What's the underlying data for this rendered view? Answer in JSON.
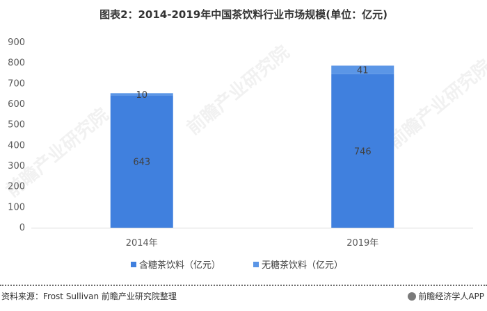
{
  "title": "图表2：2014-2019年中国茶饮料行业市场规模(单位：亿元)",
  "chart_data": {
    "type": "bar",
    "stacked": true,
    "categories": [
      "2014年",
      "2019年"
    ],
    "series": [
      {
        "name": "含糖茶饮料（亿元）",
        "values": [
          643,
          746
        ],
        "color": "#4080de"
      },
      {
        "name": "无糖茶饮料（亿元）",
        "values": [
          10,
          41
        ],
        "color": "#5b96e6"
      }
    ],
    "ylim": [
      0,
      900
    ],
    "yticks": [
      0,
      100,
      200,
      300,
      400,
      500,
      600,
      700,
      800,
      900
    ],
    "legend_position": "bottom",
    "grid": false
  },
  "footer": {
    "source": "资料来源：Frost  Sullivan 前瞻产业研究院整理",
    "brand": "前瞻经济学人APP"
  },
  "watermark": "前瞻产业研究院"
}
